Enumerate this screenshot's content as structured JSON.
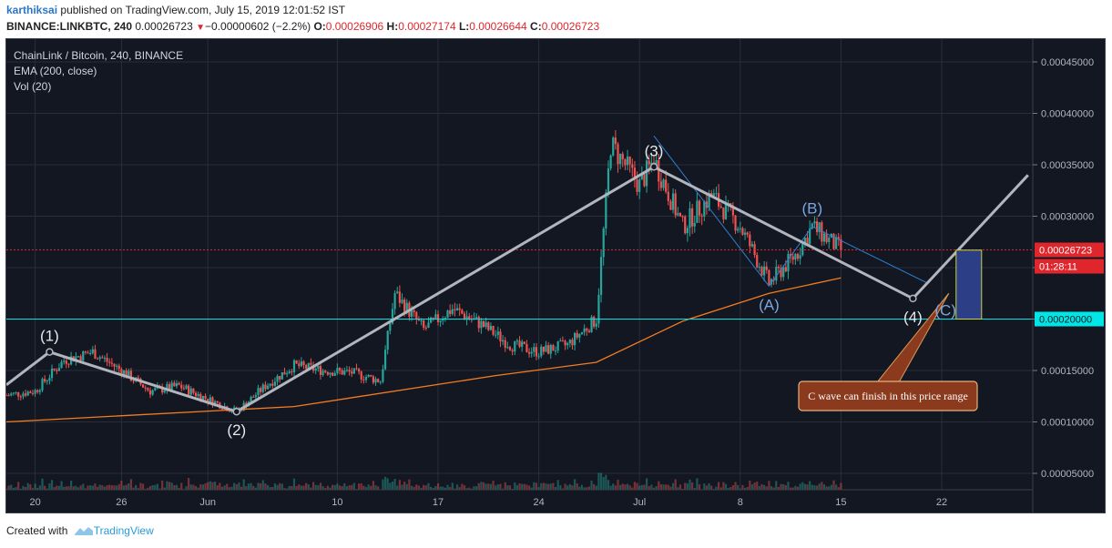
{
  "header": {
    "author": "karthiksai",
    "published": "published on TradingView.com, July 15, 2019 12:01:52 IST",
    "symbol": "BINANCE:LINKBTC, 240",
    "last": "0.00026723",
    "arrow": "▼",
    "change": "−0.00000602 (−2.2%)",
    "o_label": "O:",
    "o": "0.00026906",
    "h_label": "H:",
    "h": "0.00027174",
    "l_label": "L:",
    "l": "0.00026644",
    "c_label": "C:",
    "c": "0.00026723"
  },
  "legend": {
    "title": "ChainLink / Bitcoin, 240, BINANCE",
    "ema": "EMA (200, close)",
    "vol": "Vol (20)"
  },
  "footer": {
    "created_with": "Created with",
    "brand": "TradingView"
  },
  "colors": {
    "bg": "#131722",
    "grid": "#2a2e39",
    "up": "#26a69a",
    "down": "#ef5350",
    "ema": "#f57c20",
    "wave": "#b2b5be",
    "channel": "#2f7fd1",
    "cyan": "#00e5e5",
    "price_line": "#e0262d",
    "target_box": "#2c3f86",
    "callout": "#8b3a1e"
  },
  "chart_data": {
    "type": "candlestick",
    "title": "ChainLink / Bitcoin, 240, BINANCE",
    "x_ticks": [
      "20",
      "26",
      "Jun",
      "10",
      "17",
      "24",
      "Jul",
      "8",
      "15",
      "22"
    ],
    "y_ticks": [
      "0.00045000",
      "0.00040000",
      "0.00035000",
      "0.00030000",
      "0.00025000",
      "0.00020000",
      "0.00015000",
      "0.00010000",
      "0.00005000"
    ],
    "y_range": [
      2e-05,
      0.00048
    ],
    "x_range_days": [
      "2019-05-18",
      "2019-07-28"
    ],
    "approx_close_path": [
      [
        "2019-05-18",
        0.000126
      ],
      [
        "2019-05-20",
        0.00013
      ],
      [
        "2019-05-22",
        0.00016
      ],
      [
        "2019-05-24",
        0.000168
      ],
      [
        "2019-05-26",
        0.00015
      ],
      [
        "2019-05-28",
        0.00013
      ],
      [
        "2019-05-30",
        0.000135
      ],
      [
        "2019-06-01",
        0.000122
      ],
      [
        "2019-06-03",
        0.00011
      ],
      [
        "2019-06-05",
        0.000135
      ],
      [
        "2019-06-07",
        0.000155
      ],
      [
        "2019-06-09",
        0.00015
      ],
      [
        "2019-06-11",
        0.000148
      ],
      [
        "2019-06-13",
        0.00014
      ],
      [
        "2019-06-14",
        0.000225
      ],
      [
        "2019-06-16",
        0.00019
      ],
      [
        "2019-06-18",
        0.00021
      ],
      [
        "2019-06-20",
        0.000195
      ],
      [
        "2019-06-22",
        0.000175
      ],
      [
        "2019-06-24",
        0.000168
      ],
      [
        "2019-06-26",
        0.000175
      ],
      [
        "2019-06-28",
        0.0002
      ],
      [
        "2019-06-29",
        0.00037
      ],
      [
        "2019-07-01",
        0.00033
      ],
      [
        "2019-07-02",
        0.000355
      ],
      [
        "2019-07-04",
        0.00029
      ],
      [
        "2019-07-06",
        0.00032
      ],
      [
        "2019-07-08",
        0.00029
      ],
      [
        "2019-07-10",
        0.000235
      ],
      [
        "2019-07-12",
        0.000265
      ],
      [
        "2019-07-13",
        0.00029
      ],
      [
        "2019-07-15",
        0.000267
      ]
    ],
    "last_price": "0.00026723",
    "countdown": "01:28:11",
    "level_line": "0.00020000",
    "ema_path": [
      [
        "2019-05-18",
        0.0001
      ],
      [
        "2019-06-07",
        0.000115
      ],
      [
        "2019-06-21",
        0.000145
      ],
      [
        "2019-06-28",
        0.000158
      ],
      [
        "2019-07-04",
        0.000198
      ],
      [
        "2019-07-10",
        0.000225
      ],
      [
        "2019-07-15",
        0.00024
      ]
    ],
    "wave_labels": [
      {
        "label": "(1)",
        "date": "2019-05-21",
        "price": 0.000168
      },
      {
        "label": "(2)",
        "date": "2019-06-03",
        "price": 0.00011
      },
      {
        "label": "(3)",
        "date": "2019-07-02",
        "price": 0.000348
      },
      {
        "label": "(4)",
        "date": "2019-07-20",
        "price": 0.00022
      }
    ],
    "sub_wave_labels": [
      {
        "label": "(A)",
        "date": "2019-07-10",
        "price": 0.00023
      },
      {
        "label": "(B)",
        "date": "2019-07-13",
        "price": 0.000292
      },
      {
        "label": "(C)",
        "date": "2019-07-21",
        "price": 0.000225
      }
    ],
    "wave_path": [
      [
        "2019-05-18",
        0.000136
      ],
      [
        "2019-05-21",
        0.000168
      ],
      [
        "2019-06-03",
        0.00011
      ],
      [
        "2019-07-02",
        0.000348
      ],
      [
        "2019-07-20",
        0.00022
      ],
      [
        "2019-07-28",
        0.00034
      ]
    ],
    "annotation": "C wave can finish in this price range",
    "target_range": [
      0.0002,
      0.000267
    ]
  }
}
